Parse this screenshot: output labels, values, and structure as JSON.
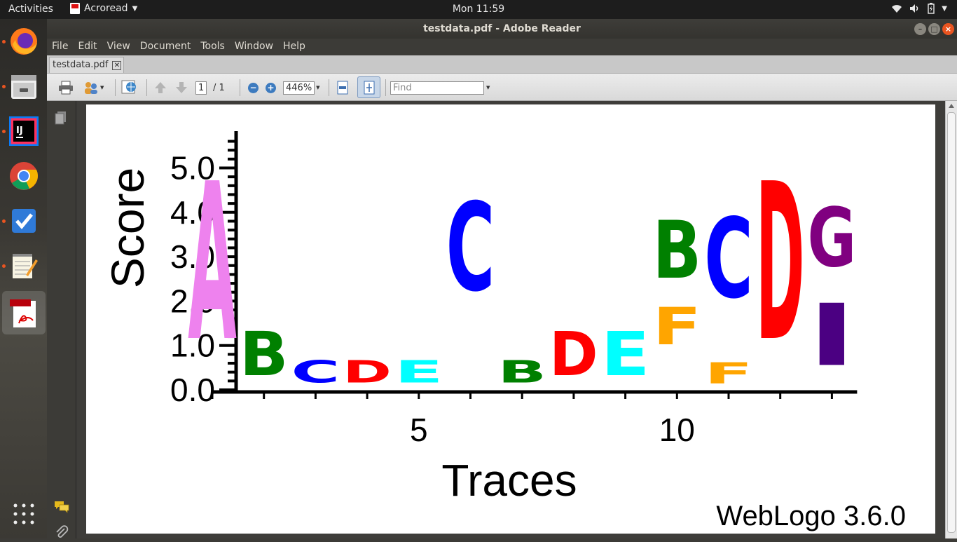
{
  "topbar": {
    "activities": "Activities",
    "app_name": "Acroread",
    "clock": "Mon 11:59"
  },
  "dock": {
    "apps": [
      "Firefox",
      "Files",
      "IntelliJ IDEA",
      "Chrome",
      "Tasks",
      "Text Editor",
      "Adobe Reader"
    ],
    "running": [
      true,
      true,
      true,
      false,
      true,
      true,
      false
    ],
    "active_index": 6
  },
  "window": {
    "title": "testdata.pdf - Adobe Reader",
    "menu": [
      "File",
      "Edit",
      "View",
      "Document",
      "Tools",
      "Window",
      "Help"
    ],
    "tab_label": "testdata.pdf",
    "toolbar": {
      "page_current": "1",
      "page_total": "/ 1",
      "zoom": "446%",
      "find_placeholder": "Find"
    }
  },
  "colors": {
    "A": "#ee82ee",
    "B": "#008000",
    "C": "#0000ff",
    "D": "#ff0000",
    "E": "#00ffff",
    "F": "#ffa500",
    "G": "#800080",
    "I": "#4b0082"
  },
  "chart_data": {
    "type": "sequence-logo",
    "ylabel": "Score",
    "xlabel": "Traces",
    "footer": "WebLogo 3.6.0",
    "ylim": [
      0,
      5.7
    ],
    "yticks": [
      "0.0",
      "1.0",
      "2.0",
      "3.0",
      "4.0",
      "5.0"
    ],
    "xtick_labels": [
      {
        "position": 5,
        "label": "5"
      },
      {
        "position": 10,
        "label": "10"
      }
    ],
    "positions": [
      {
        "position": 1,
        "stack": [
          {
            "letter": "A",
            "from": 0,
            "to": 5.7
          }
        ]
      },
      {
        "position": 2,
        "stack": [
          {
            "letter": "B",
            "from": 0,
            "to": 1.6
          }
        ]
      },
      {
        "position": 3,
        "stack": [
          {
            "letter": "C",
            "from": 0,
            "to": 0.8
          }
        ]
      },
      {
        "position": 4,
        "stack": [
          {
            "letter": "D",
            "from": 0,
            "to": 0.8
          }
        ]
      },
      {
        "position": 5,
        "stack": [
          {
            "letter": "E",
            "from": 0,
            "to": 0.8
          }
        ]
      },
      {
        "position": 6,
        "stack": [
          {
            "letter": "C",
            "from": 1.6,
            "to": 4.8
          }
        ]
      },
      {
        "position": 7,
        "stack": [
          {
            "letter": "B",
            "from": 0,
            "to": 0.8
          }
        ]
      },
      {
        "position": 8,
        "stack": [
          {
            "letter": "D",
            "from": 0,
            "to": 1.6
          }
        ]
      },
      {
        "position": 9,
        "stack": [
          {
            "letter": "E",
            "from": 0,
            "to": 1.6
          }
        ]
      },
      {
        "position": 10,
        "stack": [
          {
            "letter": "F",
            "from": 0.75,
            "to": 2.1
          },
          {
            "letter": "B",
            "from": 2.1,
            "to": 4.2
          }
        ]
      },
      {
        "position": 11,
        "stack": [
          {
            "letter": "F",
            "from": 0,
            "to": 0.75
          },
          {
            "letter": "C",
            "from": 1.5,
            "to": 4.4
          }
        ]
      },
      {
        "position": 12,
        "stack": [
          {
            "letter": "D",
            "from": 0,
            "to": 5.7
          }
        ]
      },
      {
        "position": 13,
        "stack": [
          {
            "letter": "I",
            "from": 0.1,
            "to": 2.35
          },
          {
            "letter": "G",
            "from": 2.35,
            "to": 4.5
          }
        ]
      }
    ]
  }
}
